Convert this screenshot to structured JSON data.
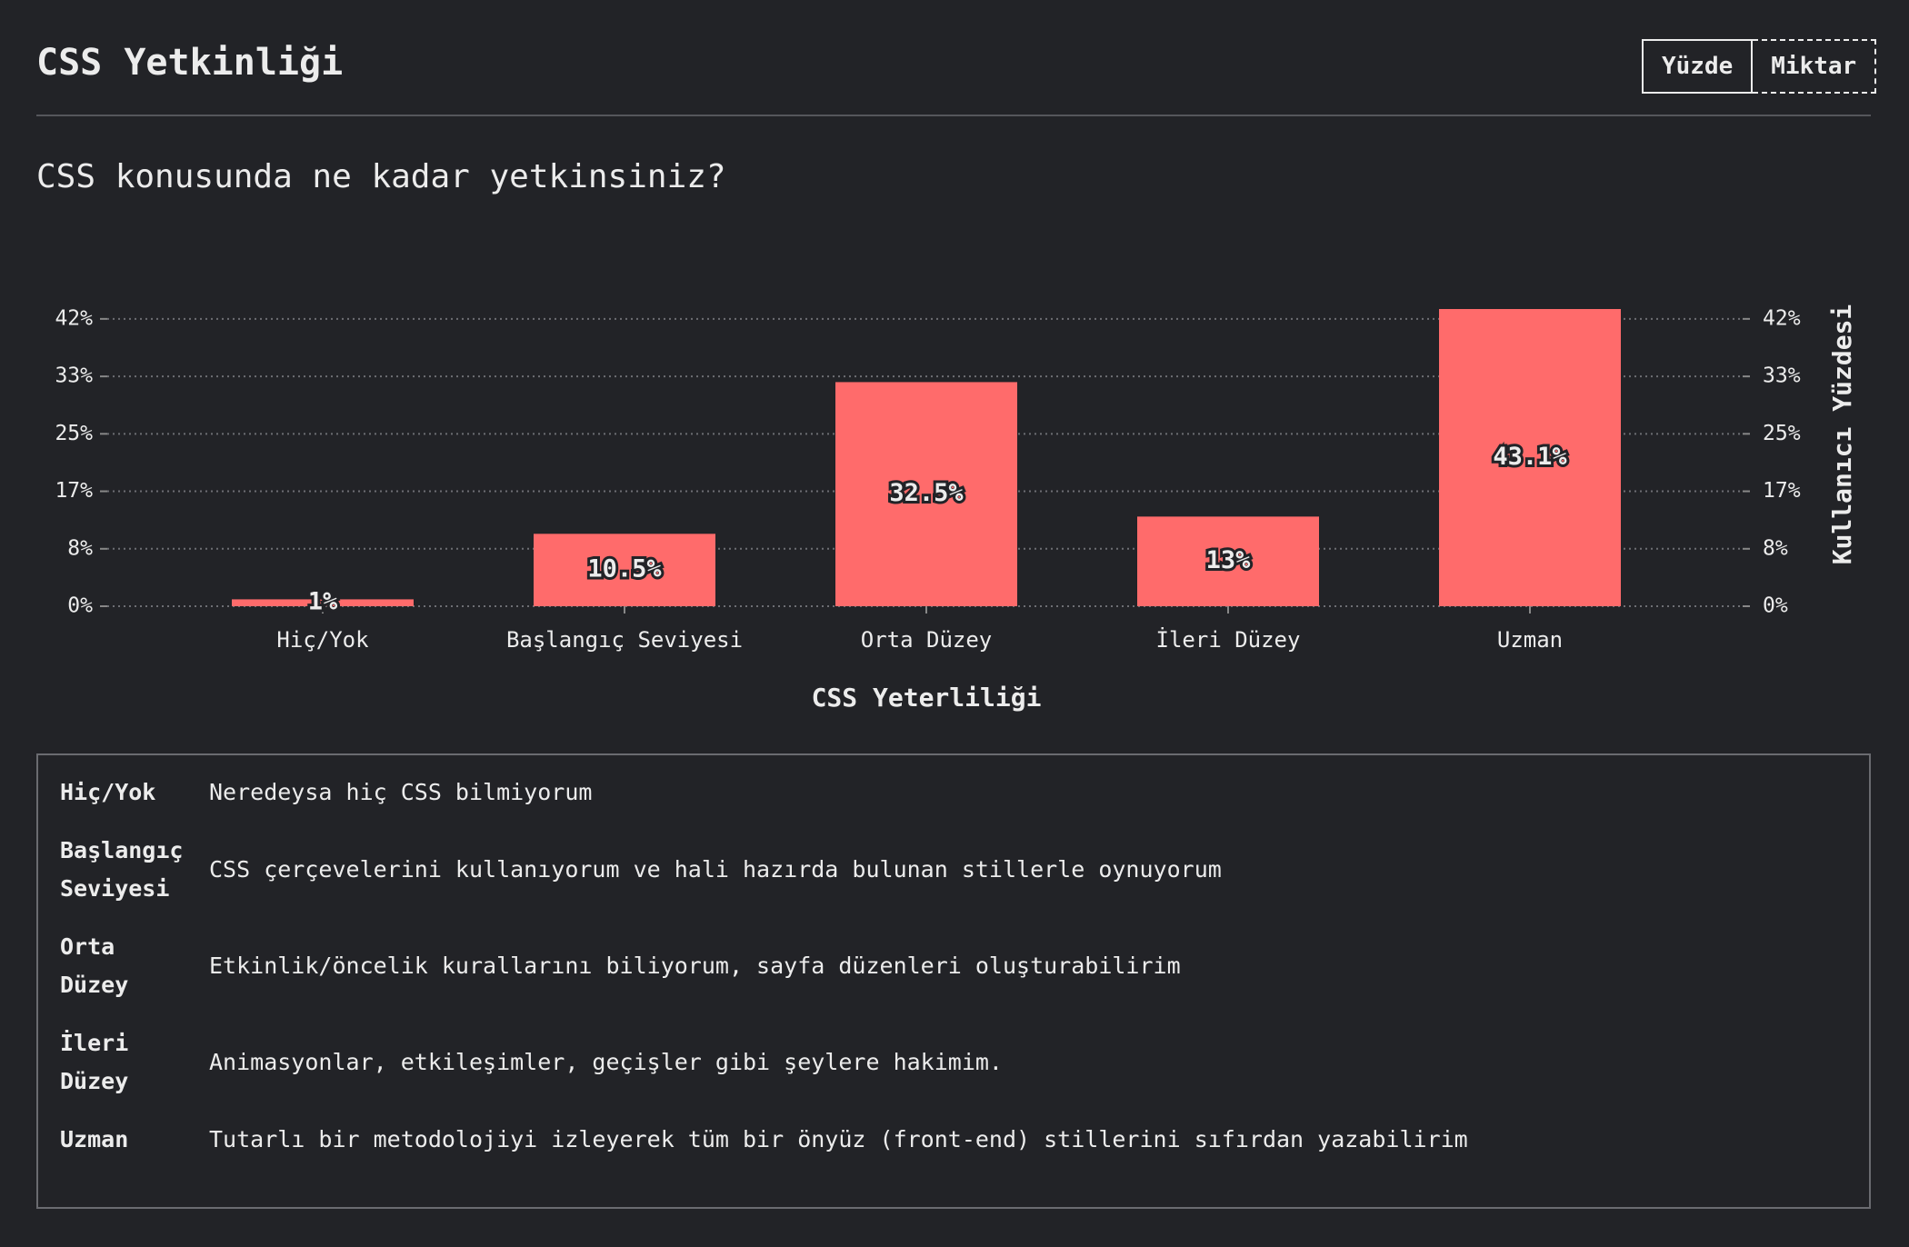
{
  "header": {
    "title": "CSS Yetkinliği",
    "buttons": [
      "Yüzde",
      "Miktar"
    ]
  },
  "question": "CSS konusunda ne kadar yetkinsiniz?",
  "chart_data": {
    "type": "bar",
    "categories": [
      "Hiç/Yok",
      "Başlangıç Seviyesi",
      "Orta Düzey",
      "İleri Düzey",
      "Uzman"
    ],
    "values": [
      1,
      10.5,
      32.5,
      13,
      43.1
    ],
    "value_labels": [
      "1%",
      "10.5%",
      "32.5%",
      "13%",
      "43.1%"
    ],
    "color": "#ff6b6b",
    "x_label": "CSS Yeterliliği",
    "y_label": "Kullanıcı Yüzdesi",
    "ylim": [
      0,
      43.1
    ],
    "yticks": [
      {
        "value": 0,
        "label": "0%"
      },
      {
        "value": 8.33,
        "label": "8%"
      },
      {
        "value": 16.67,
        "label": "17%"
      },
      {
        "value": 25,
        "label": "25%"
      },
      {
        "value": 33.33,
        "label": "33%"
      },
      {
        "value": 41.67,
        "label": "42%"
      }
    ],
    "grid": true
  },
  "definitions": [
    {
      "term": "Hiç/Yok",
      "description": "Neredeysa hiç CSS bilmiyorum"
    },
    {
      "term": "Başlangıç Seviyesi",
      "description": "CSS çerçevelerini kullanıyorum ve hali hazırda bulunan stillerle oynuyorum"
    },
    {
      "term": "Orta Düzey",
      "description": "Etkinlik/öncelik kurallarını biliyorum, sayfa düzenleri oluşturabilirim"
    },
    {
      "term": "İleri Düzey",
      "description": "Animasyonlar, etkileşimler, geçişler gibi şeylere hakimim."
    },
    {
      "term": "Uzman",
      "description": "Tutarlı bir metodolojiyi izleyerek tüm bir önyüz (front-end) stillerini sıfırdan yazabilirim"
    }
  ]
}
